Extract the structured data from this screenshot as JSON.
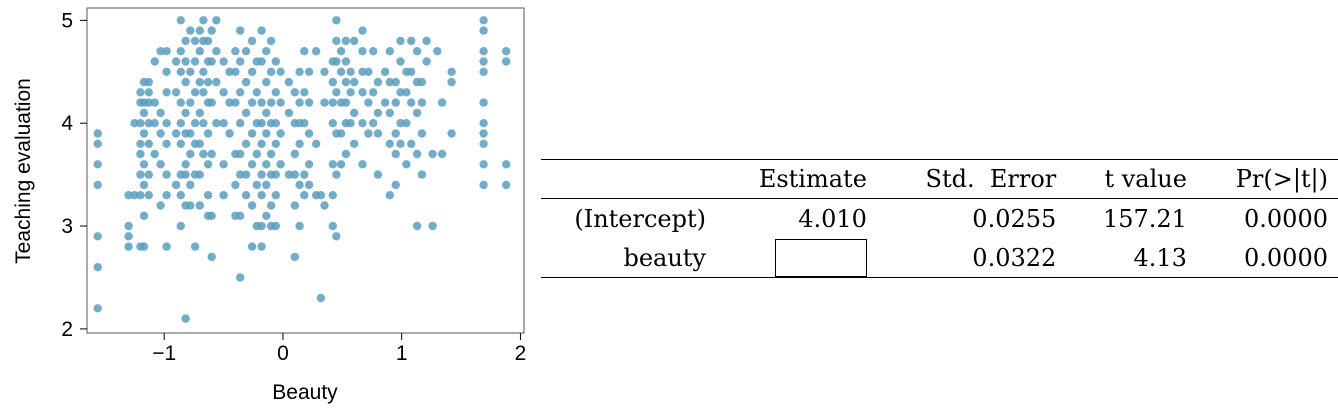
{
  "chart_data": {
    "type": "scatter",
    "xlabel": "Beauty",
    "ylabel": "Teaching evaluation",
    "xlim": [
      -1.65,
      2.03
    ],
    "ylim": [
      1.96,
      5.12
    ],
    "xticks": [
      {
        "v": -1,
        "label": "−1"
      },
      {
        "v": 0,
        "label": "0"
      },
      {
        "v": 1,
        "label": "1"
      },
      {
        "v": 2,
        "label": "2"
      }
    ],
    "yticks": [
      {
        "v": 2,
        "label": "2"
      },
      {
        "v": 3,
        "label": "3"
      },
      {
        "v": 4,
        "label": "4"
      },
      {
        "v": 5,
        "label": "5"
      }
    ],
    "point_color": "#5b9ec0",
    "columns": [
      {
        "x": -1.56,
        "y": [
          3.9,
          3.8,
          3.6,
          3.4,
          2.9,
          2.6,
          2.2
        ]
      },
      {
        "x": -1.3,
        "y": [
          3.3,
          3.0,
          2.9,
          2.8
        ]
      },
      {
        "x": -1.25,
        "y": [
          4.0,
          3.3
        ]
      },
      {
        "x": -1.2,
        "y": [
          4.3,
          4.2,
          4.0,
          3.8,
          3.7,
          3.5,
          3.3,
          2.8
        ]
      },
      {
        "x": -1.17,
        "y": [
          4.4,
          4.2,
          4.1,
          3.9,
          3.6,
          3.4,
          3.1,
          2.8
        ]
      },
      {
        "x": -1.13,
        "y": [
          4.4,
          4.3,
          4.2,
          4.0,
          3.8,
          3.5,
          3.3
        ]
      },
      {
        "x": -1.08,
        "y": [
          4.6,
          4.2,
          4.0,
          3.7
        ]
      },
      {
        "x": -1.03,
        "y": [
          4.7,
          4.1,
          3.9,
          3.6,
          3.2
        ]
      },
      {
        "x": -0.98,
        "y": [
          4.7,
          4.5,
          4.3,
          4.0,
          3.8,
          3.5,
          3.3,
          2.8
        ]
      },
      {
        "x": -0.9,
        "y": [
          4.6,
          4.3,
          3.9,
          3.4
        ]
      },
      {
        "x": -0.86,
        "y": [
          5.0,
          4.7,
          4.5,
          4.2,
          4.0,
          3.8,
          3.5,
          3.3,
          3.0
        ]
      },
      {
        "x": -0.82,
        "y": [
          4.8,
          4.6,
          4.4,
          4.1,
          3.9,
          3.6,
          3.5,
          3.2,
          2.1
        ]
      },
      {
        "x": -0.78,
        "y": [
          4.9,
          4.5,
          4.2,
          3.9,
          3.7,
          3.4,
          3.2
        ]
      },
      {
        "x": -0.74,
        "y": [
          4.8,
          4.6,
          4.3,
          4.0,
          3.8,
          3.5,
          2.8
        ]
      },
      {
        "x": -0.7,
        "y": [
          4.9,
          4.7,
          4.4,
          4.1,
          3.8,
          3.5,
          3.2
        ]
      },
      {
        "x": -0.67,
        "y": [
          5.0,
          4.8,
          4.5,
          4.3,
          4.0,
          3.7
        ]
      },
      {
        "x": -0.63,
        "y": [
          4.8,
          4.6,
          4.4,
          4.2,
          3.9,
          3.6,
          3.3,
          3.1
        ]
      },
      {
        "x": -0.6,
        "y": [
          4.9,
          4.6,
          4.2,
          3.7,
          3.1,
          2.7
        ]
      },
      {
        "x": -0.56,
        "y": [
          5.0,
          4.7,
          4.4,
          4.0
        ]
      },
      {
        "x": -0.5,
        "y": [
          4.6,
          4.3,
          4.0,
          3.6,
          3.3
        ]
      },
      {
        "x": -0.45,
        "y": [
          4.5,
          4.2,
          3.9
        ]
      },
      {
        "x": -0.4,
        "y": [
          4.7,
          4.5,
          4.2,
          3.7,
          3.4,
          3.1
        ]
      },
      {
        "x": -0.36,
        "y": [
          4.9,
          4.6,
          4.3,
          4.0,
          3.7,
          3.5,
          3.1,
          2.5
        ]
      },
      {
        "x": -0.31,
        "y": [
          4.7,
          4.4,
          4.1,
          3.8,
          3.5,
          3.3
        ]
      },
      {
        "x": -0.26,
        "y": [
          4.8,
          4.5,
          4.2,
          3.9,
          3.6,
          3.2,
          2.8
        ]
      },
      {
        "x": -0.22,
        "y": [
          4.6,
          4.3,
          4.0,
          3.7,
          3.4,
          3.0
        ]
      },
      {
        "x": -0.18,
        "y": [
          4.9,
          4.6,
          4.2,
          4.0,
          3.8,
          3.5,
          3.3,
          3.0,
          2.8
        ]
      },
      {
        "x": -0.14,
        "y": [
          4.7,
          4.4,
          4.1,
          3.9,
          3.6,
          3.4,
          3.1
        ]
      },
      {
        "x": -0.1,
        "y": [
          4.8,
          4.5,
          4.2,
          4.0,
          3.7,
          3.5,
          3.2,
          3.0
        ]
      },
      {
        "x": -0.06,
        "y": [
          4.6,
          4.3,
          4.0,
          3.8,
          3.5,
          3.3,
          3.0
        ]
      },
      {
        "x": -0.02,
        "y": [
          4.5,
          4.2,
          3.9,
          3.6
        ]
      },
      {
        "x": 0.05,
        "y": [
          4.4,
          4.1,
          3.5
        ]
      },
      {
        "x": 0.1,
        "y": [
          4.3,
          4.0,
          3.7,
          3.5,
          3.2,
          2.7
        ]
      },
      {
        "x": 0.14,
        "y": [
          4.5,
          4.2,
          4.0,
          3.8,
          3.4,
          3.0
        ]
      },
      {
        "x": 0.18,
        "y": [
          4.7,
          4.3,
          4.0,
          3.5,
          3.3
        ]
      },
      {
        "x": 0.22,
        "y": [
          4.5,
          4.2,
          3.9,
          3.6,
          3.4
        ]
      },
      {
        "x": 0.28,
        "y": [
          4.7,
          3.8,
          3.3
        ]
      },
      {
        "x": 0.32,
        "y": [
          3.3,
          2.3
        ]
      },
      {
        "x": 0.35,
        "y": [
          4.5,
          4.2,
          3.2
        ]
      },
      {
        "x": 0.42,
        "y": [
          4.6,
          4.4,
          4.2,
          4.0,
          3.6,
          3.3,
          3.0
        ]
      },
      {
        "x": 0.45,
        "y": [
          5.0,
          4.8,
          4.6,
          4.3,
          3.9,
          3.5,
          2.9
        ]
      },
      {
        "x": 0.49,
        "y": [
          4.7,
          4.5,
          4.2,
          3.9,
          3.6
        ]
      },
      {
        "x": 0.53,
        "y": [
          4.8,
          4.6,
          4.4,
          4.2,
          4.0,
          3.7
        ]
      },
      {
        "x": 0.57,
        "y": [
          4.5,
          4.3,
          4.0
        ]
      },
      {
        "x": 0.6,
        "y": [
          4.8,
          4.4,
          4.1,
          3.8
        ]
      },
      {
        "x": 0.67,
        "y": [
          4.9,
          4.7,
          4.5,
          4.3,
          4.0,
          3.6
        ]
      },
      {
        "x": 0.72,
        "y": [
          4.5,
          4.2,
          3.9
        ]
      },
      {
        "x": 0.76,
        "y": [
          4.7,
          4.3,
          4.0
        ]
      },
      {
        "x": 0.8,
        "y": [
          4.4,
          4.1,
          3.9,
          3.5
        ]
      },
      {
        "x": 0.86,
        "y": [
          4.5,
          4.2
        ]
      },
      {
        "x": 0.9,
        "y": [
          4.7,
          4.4,
          4.1,
          3.8,
          3.3
        ]
      },
      {
        "x": 0.95,
        "y": [
          4.4,
          4.2,
          3.9,
          3.7,
          3.4
        ]
      },
      {
        "x": 0.99,
        "y": [
          4.8,
          4.6,
          4.3,
          4.0,
          3.8
        ]
      },
      {
        "x": 1.04,
        "y": [
          4.5,
          4.3,
          4.0,
          3.6
        ]
      },
      {
        "x": 1.08,
        "y": [
          4.8,
          4.5,
          4.2,
          3.8
        ]
      },
      {
        "x": 1.13,
        "y": [
          4.7,
          4.4,
          4.1,
          3.7,
          3.0
        ]
      },
      {
        "x": 1.17,
        "y": [
          4.4,
          4.2,
          3.9,
          3.5
        ]
      },
      {
        "x": 1.21,
        "y": [
          4.8,
          4.6
        ]
      },
      {
        "x": 1.26,
        "y": [
          3.7,
          3.0
        ]
      },
      {
        "x": 1.3,
        "y": [
          4.7
        ]
      },
      {
        "x": 1.34,
        "y": [
          4.2,
          3.7
        ]
      },
      {
        "x": 1.42,
        "y": [
          4.5,
          4.4,
          3.9
        ]
      },
      {
        "x": 1.69,
        "y": [
          5.0,
          4.9,
          4.7,
          4.6,
          4.5,
          4.2,
          4.0,
          3.9,
          3.8,
          3.6,
          3.4
        ]
      },
      {
        "x": 1.88,
        "y": [
          4.7,
          4.6,
          3.6,
          3.4
        ]
      }
    ]
  },
  "table": {
    "headers": [
      "",
      "Estimate",
      "Std.  Error",
      "t value",
      "Pr(>|t|)"
    ],
    "rows": [
      {
        "label": "(Intercept)",
        "estimate": "4.010",
        "std_error": "0.0255",
        "t_value": "157.21",
        "p_value": "0.0000"
      },
      {
        "label": "beauty",
        "estimate": "",
        "std_error": "0.0322",
        "t_value": "4.13",
        "p_value": "0.0000"
      }
    ]
  }
}
